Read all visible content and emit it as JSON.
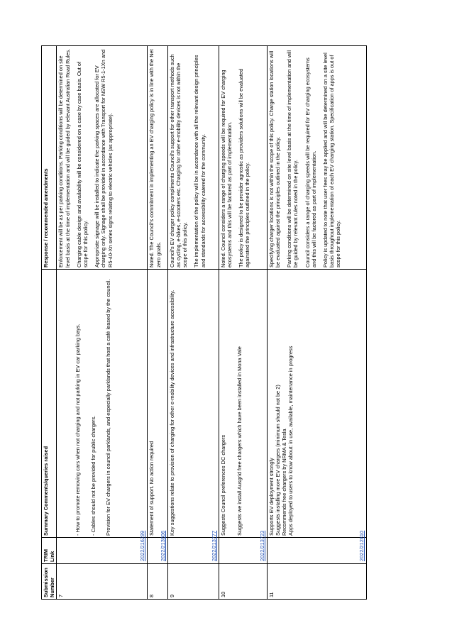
{
  "headers": {
    "submission": "Submission Number",
    "trim": "TRIM Link",
    "summary": "Summary Comments/queries raised",
    "response": "Response / recommended amendments"
  },
  "rows": [
    {
      "number": "7",
      "trim": "2022/216299",
      "summary": [
        "- How to promote removing cars when not charging and not parking in EV car parking bays.",
        "- Cables should not be provided for public chargers.",
        "Provision for EV chargers in council parklands, and especially parklands that host a café leased by the council."
      ],
      "response": [
        "Enforcement will be as per parking conditions. Parking conditions will be determined on site level basis at the time of implementation and will be guided by relevant Australian Road Rules.",
        "Charging cable design and availability will be considered on a case by case basis. Out of scope for this policy.",
        "Appropriate signage will be installed to indicate the parking spaces are allocated for EV charging only. Signage shall be provided in accordance with Transport for NSW R5-1-1Xn and R5-40-Xn series signs relating to electric vehicles (as appropriate)."
      ]
    },
    {
      "number": "8",
      "trim": "2022/213806",
      "summary": [
        "Statement of support. No action required"
      ],
      "response": [
        "Noted. The Council's commitment in implementing an EV charging policy is in line with the Net zero goals."
      ]
    },
    {
      "number": "9",
      "trim": "2022/213777",
      "summary": [
        "Key suggestions relate to provision of charging for other e-mobility devices and infrastructure accessibility."
      ],
      "response": [
        "Council's EV charger policy compliments Council's support for other transport methods such as cycling, e-bikes, e-scooters etc. Charging for other e-mobility devices is not within the scope of this policy.",
        "The implementation of the policy will be in accordance with all the relevant design principles and standards for accessibility catered for the community."
      ]
    },
    {
      "number": "10",
      "trim": "2022/213723",
      "summary": [
        "Suggests Council preferences DC chargers",
        "Suggests we install Ausgrid free chargers which have been installed in Mona Vale"
      ],
      "response": [
        "Noted. Council considers a range of charging speeds will be required for EV charging ecosystems and this will be factored as part of implementation.",
        "The policy is designed to be provider agnostic as providers solutions will be evaluated againsted the principles outlined in the policy."
      ]
    },
    {
      "number": "11",
      "trim": "2022/212810",
      "summary": [
        "Supports EV deployment strongly",
        "Suggests installing more EV chargers (minimum should not be 2)",
        "Recommends free chargers by NRMA & Tesla",
        "Apps deployed to users to know about: in use, available, maintenance in progress"
      ],
      "response": [
        "Specifying charger locations is not within the scope of this policy. Charge station locations will be evaluated against the principles outlined in the policy.",
        "Parking conditions will be determined on site level basis at the time of implementation and will be guided by relevant rules noted in the policy.",
        "Council considers a range of charging speeds will be required for EV charging ecosystems and this will be factored as part of implementation.",
        "Policy is updated to note that user fees may be applied and will be determined on a site level basis throughout implementation of each EV charging station. Specification of apps is out of scope for this policy."
      ]
    }
  ]
}
